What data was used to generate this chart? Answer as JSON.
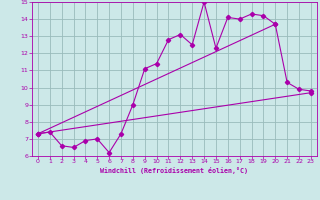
{
  "xlabel": "Windchill (Refroidissement éolien,°C)",
  "bg_color": "#cce8e8",
  "line_color": "#aa00aa",
  "grid_color": "#99bbbb",
  "xlim": [
    -0.5,
    23.5
  ],
  "ylim": [
    6,
    15
  ],
  "xticks": [
    0,
    1,
    2,
    3,
    4,
    5,
    6,
    7,
    8,
    9,
    10,
    11,
    12,
    13,
    14,
    15,
    16,
    17,
    18,
    19,
    20,
    21,
    22,
    23
  ],
  "yticks": [
    6,
    7,
    8,
    9,
    10,
    11,
    12,
    13,
    14,
    15
  ],
  "line1_x": [
    0,
    1,
    2,
    3,
    4,
    5,
    6,
    7,
    8,
    9,
    10,
    11,
    12,
    13,
    14,
    15,
    16,
    17,
    18,
    19,
    20,
    21,
    22,
    23
  ],
  "line1_y": [
    7.3,
    7.4,
    6.6,
    6.5,
    6.9,
    7.0,
    6.2,
    7.3,
    9.0,
    11.1,
    11.4,
    12.8,
    13.1,
    12.5,
    15.0,
    12.3,
    14.1,
    14.0,
    14.3,
    14.2,
    13.7,
    10.3,
    9.9,
    9.8
  ],
  "line2_x": [
    0,
    23
  ],
  "line2_y": [
    7.3,
    9.7
  ],
  "line3_x": [
    0,
    20
  ],
  "line3_y": [
    7.3,
    13.7
  ]
}
